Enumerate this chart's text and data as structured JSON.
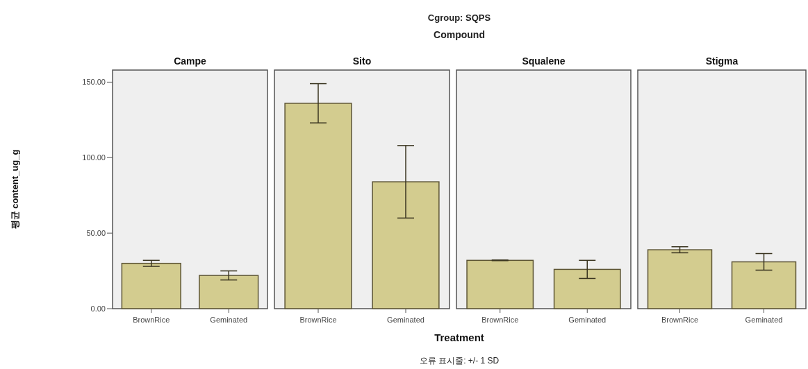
{
  "chart_data": [
    {
      "type": "bar",
      "title": "Campe",
      "ylabel": "평균 content_ug_g",
      "categories": [
        "BrownRice",
        "Geminated"
      ],
      "values": [
        30,
        22
      ],
      "errors": [
        2,
        3
      ],
      "color": "#d3cc8f",
      "ylim": [
        0,
        158
      ],
      "yticks": [
        {
          "value": 0,
          "label": "0.00"
        },
        {
          "value": 50,
          "label": "50.00"
        },
        {
          "value": 100,
          "label": "100.00"
        },
        {
          "value": 150,
          "label": "150.00"
        }
      ]
    },
    {
      "type": "bar",
      "title": "Sito",
      "xlabel": "Treatment",
      "annotations": [
        "Cgroup: SQPS",
        "Compound",
        "오류 표시줄: +/- 1 SD"
      ],
      "categories": [
        "BrownRice",
        "Geminated"
      ],
      "values": [
        136,
        84
      ],
      "errors": [
        13,
        24
      ],
      "color": "#d3cc8f",
      "ylim": [
        0,
        158
      ],
      "tick_labels": "x"
    },
    {
      "type": "bar",
      "title": "Squalene",
      "categories": [
        "BrownRice",
        "Geminated"
      ],
      "values": [
        32,
        26
      ],
      "errors": [
        0.2,
        6
      ],
      "color": "#d3cc8f",
      "ylim": [
        0,
        158
      ],
      "tick_labels": "x"
    },
    {
      "type": "bar",
      "title": "Stigma",
      "categories": [
        "BrownRice",
        "Geminated"
      ],
      "values": [
        39,
        31
      ],
      "errors": [
        2,
        5.5
      ],
      "color": "#d3cc8f",
      "ylim": [
        0,
        158
      ],
      "tick_labels": "x"
    }
  ]
}
